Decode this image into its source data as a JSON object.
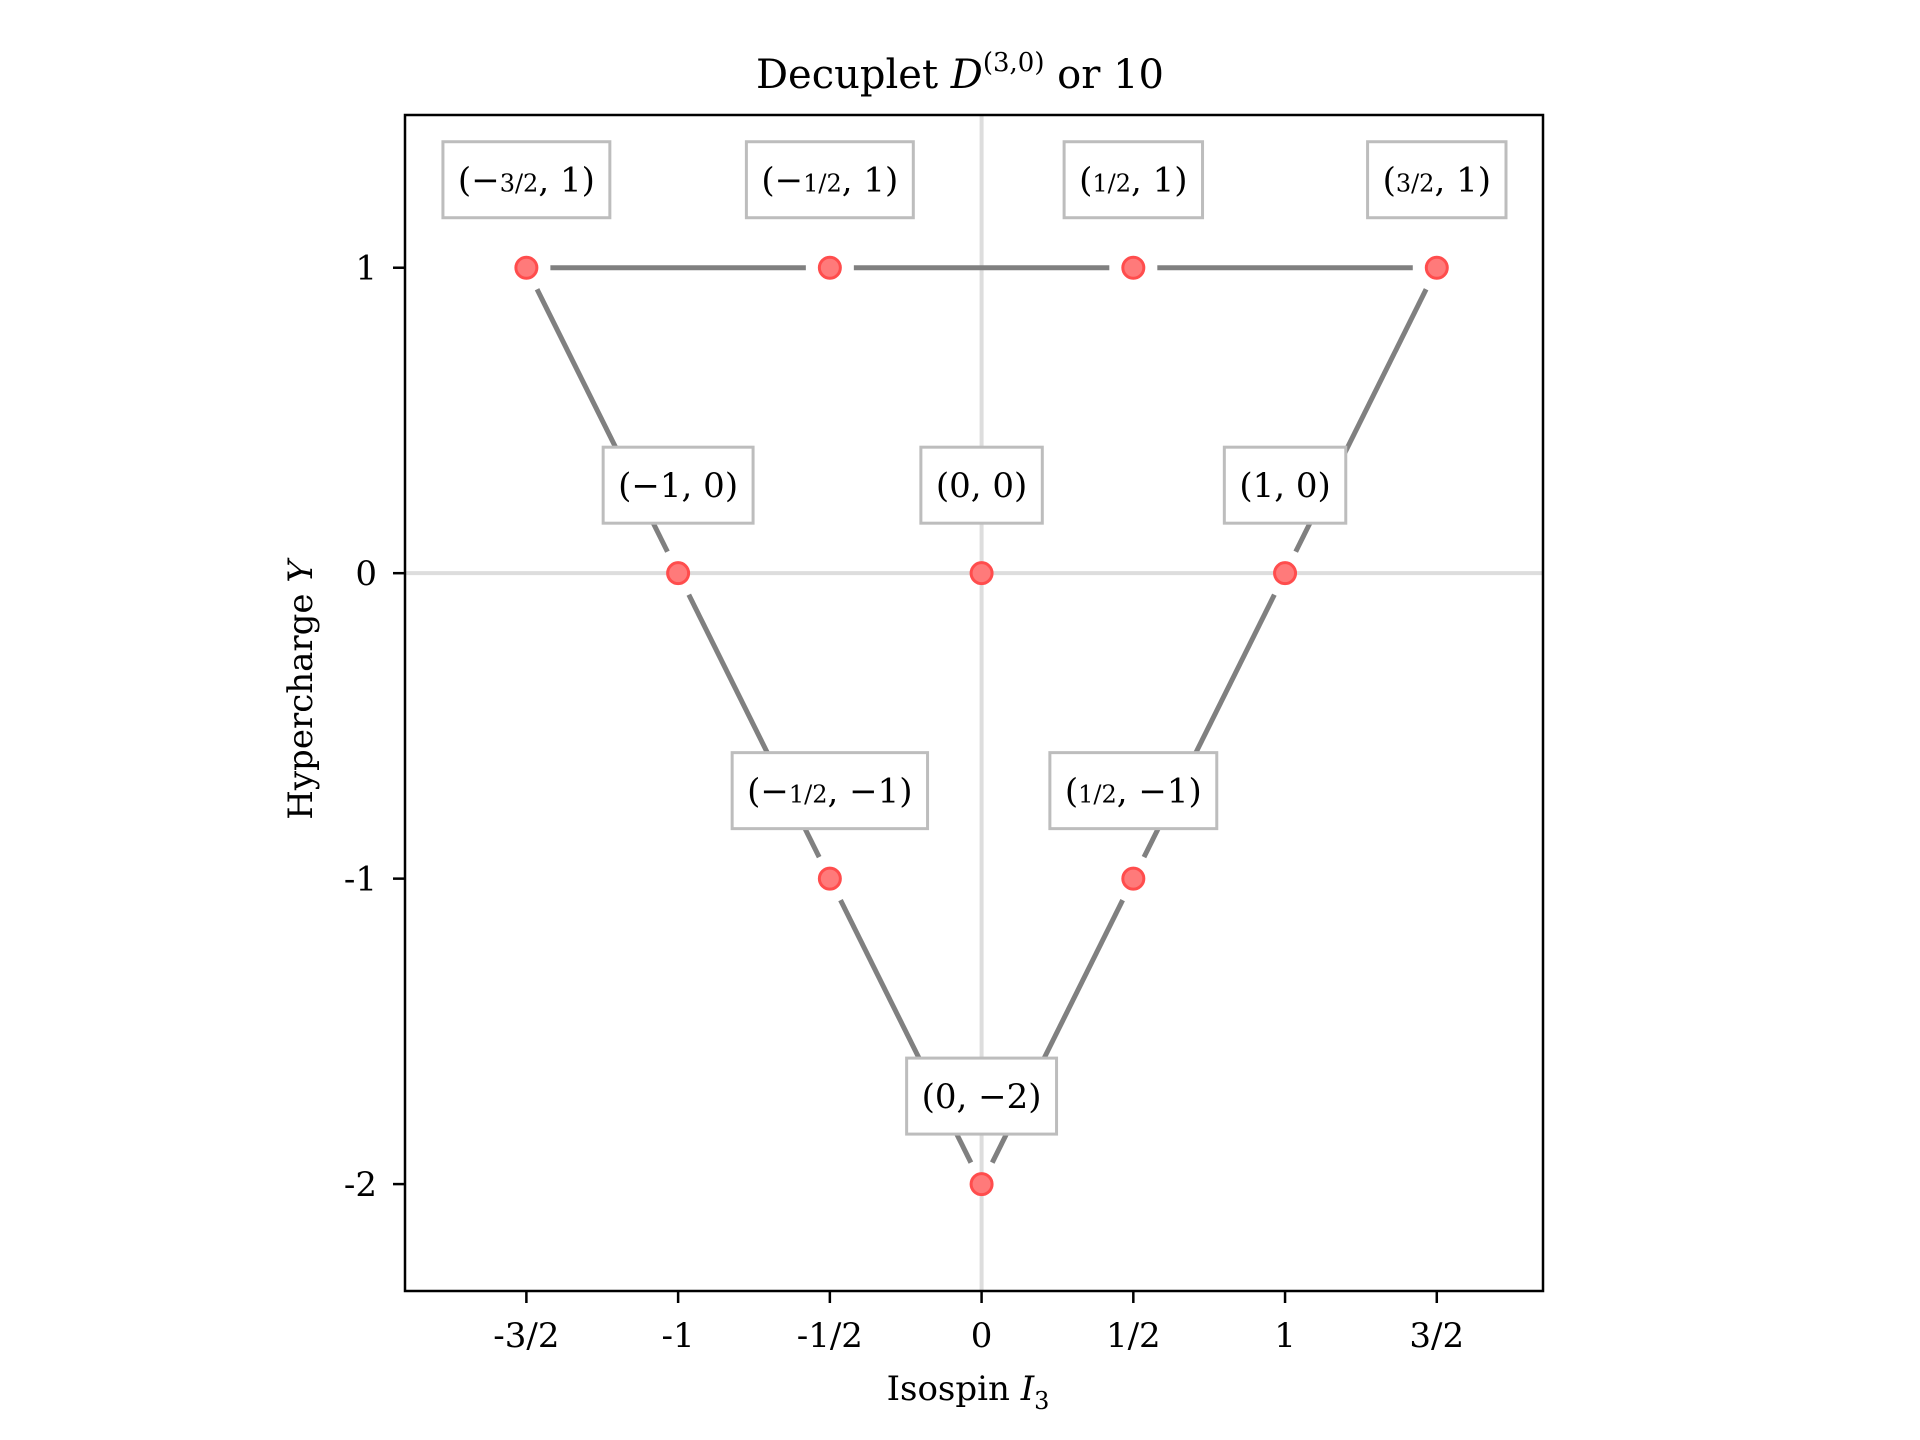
{
  "chart_data": {
    "type": "scatter",
    "title": "Decuplet D(3,0) or 10",
    "title_parts": {
      "main": "Decuplet ",
      "symbol": "D",
      "superscript": "(3,0)",
      "tail": " or 10"
    },
    "xlabel": "Isospin I3",
    "xlabel_parts": {
      "main": "Isospin ",
      "symbol": "I",
      "subscript": "3"
    },
    "ylabel": "Hypercharge Y",
    "ylabel_parts": {
      "main": "Hypercharge ",
      "symbol": "Y"
    },
    "xlim": [
      -1.9,
      1.85
    ],
    "ylim": [
      -2.35,
      1.5
    ],
    "grid": false,
    "zero_lines": true,
    "xticks": [
      {
        "value": -1.5,
        "label": "-3/2"
      },
      {
        "value": -1,
        "label": "-1"
      },
      {
        "value": -0.5,
        "label": "-1/2"
      },
      {
        "value": 0,
        "label": "0"
      },
      {
        "value": 0.5,
        "label": "1/2"
      },
      {
        "value": 1,
        "label": "1"
      },
      {
        "value": 1.5,
        "label": "3/2"
      }
    ],
    "yticks": [
      {
        "value": 1,
        "label": "1"
      },
      {
        "value": 0,
        "label": "0"
      },
      {
        "value": -1,
        "label": "-1"
      },
      {
        "value": -2,
        "label": "-2"
      }
    ],
    "points": [
      {
        "x": -1.5,
        "y": 1,
        "label": "(−3/2, 1)"
      },
      {
        "x": -0.5,
        "y": 1,
        "label": "(−1/2, 1)"
      },
      {
        "x": 0.5,
        "y": 1,
        "label": "(1/2, 1)"
      },
      {
        "x": 1.5,
        "y": 1,
        "label": "(3/2, 1)"
      },
      {
        "x": -1,
        "y": 0,
        "label": "(−1, 0)"
      },
      {
        "x": 0,
        "y": 0,
        "label": "(0, 0)"
      },
      {
        "x": 1,
        "y": 0,
        "label": "(1, 0)"
      },
      {
        "x": -0.5,
        "y": -1,
        "label": "(−1/2, −1)"
      },
      {
        "x": 0.5,
        "y": -1,
        "label": "(1/2, −1)"
      },
      {
        "x": 0,
        "y": -2,
        "label": "(0, −2)"
      }
    ],
    "edges": [
      [
        [
          -1.5,
          1
        ],
        [
          -0.5,
          1
        ]
      ],
      [
        [
          -0.5,
          1
        ],
        [
          0.5,
          1
        ]
      ],
      [
        [
          0.5,
          1
        ],
        [
          1.5,
          1
        ]
      ],
      [
        [
          -1.5,
          1
        ],
        [
          -1,
          0
        ]
      ],
      [
        [
          -1,
          0
        ],
        [
          -0.5,
          -1
        ]
      ],
      [
        [
          -0.5,
          -1
        ],
        [
          0,
          -2
        ]
      ],
      [
        [
          1.5,
          1
        ],
        [
          1,
          0
        ]
      ],
      [
        [
          1,
          0
        ],
        [
          0.5,
          -1
        ]
      ],
      [
        [
          0.5,
          -1
        ],
        [
          0,
          -2
        ]
      ]
    ],
    "colors": {
      "marker_fill": "#ff7a7a",
      "marker_edge": "#ff4d4d",
      "edge_line": "#808080",
      "zero_line": "#dddddd",
      "label_box_edge": "#bdbdbd"
    }
  }
}
